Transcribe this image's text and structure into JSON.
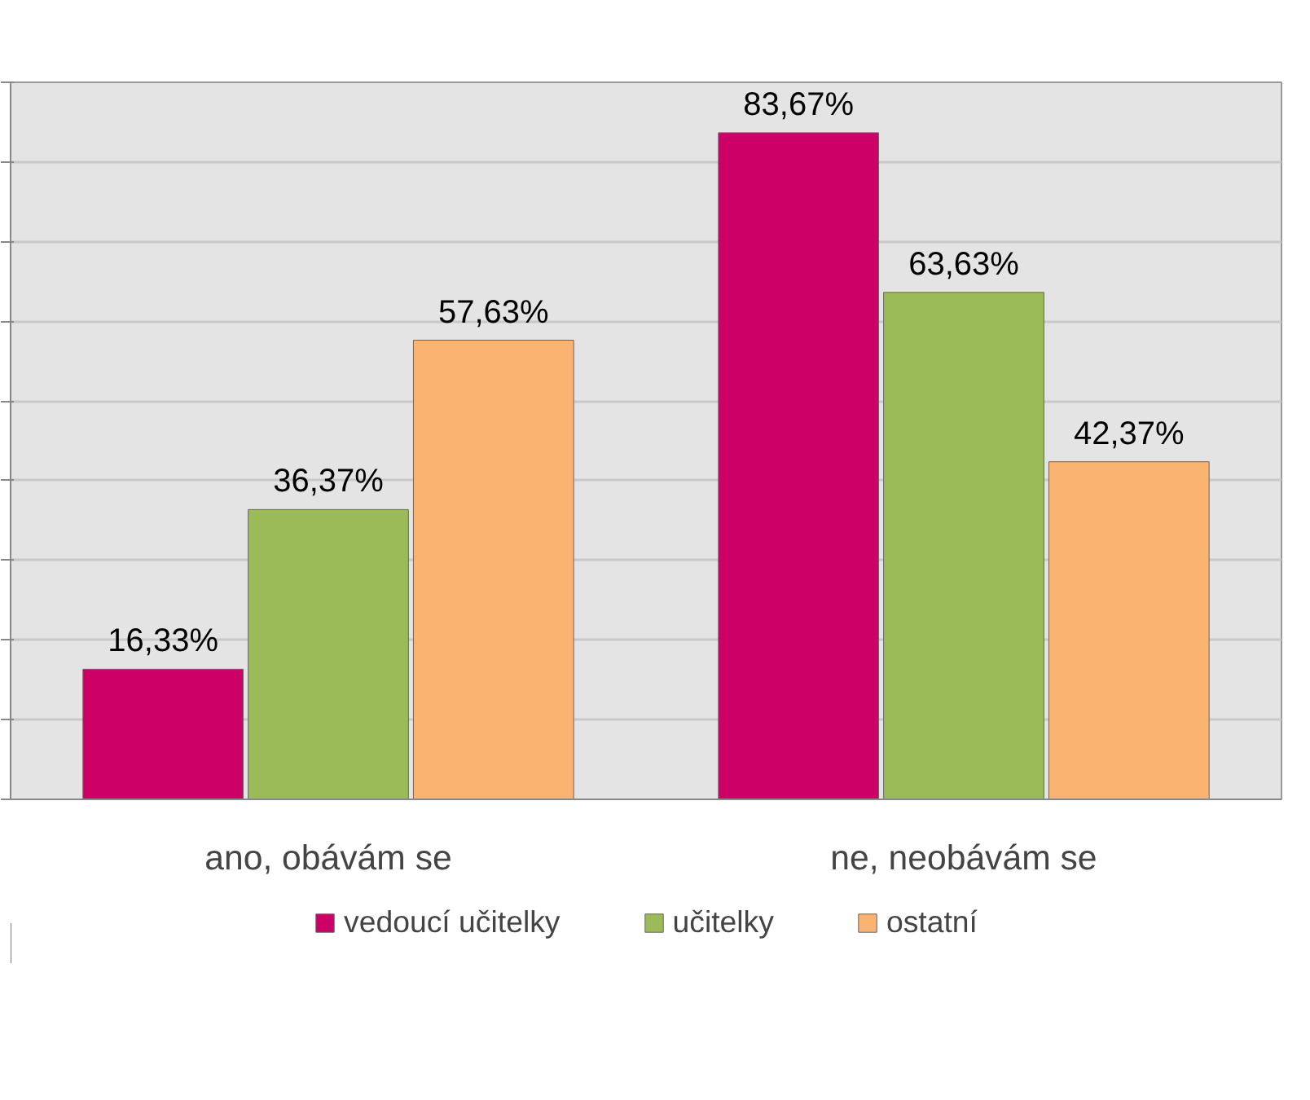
{
  "chart_data": {
    "type": "bar",
    "categories": [
      "ano, obávám se",
      "ne, neobávám se"
    ],
    "series": [
      {
        "name": "vedoucí učitelky",
        "color": "#cc0066",
        "values": [
          16.33,
          83.67
        ],
        "value_labels": [
          "16,33%",
          "83,67%"
        ]
      },
      {
        "name": "učitelky",
        "color": "#9bbb59",
        "values": [
          36.37,
          63.63
        ],
        "value_labels": [
          "36,37%",
          "63,63%"
        ]
      },
      {
        "name": "ostatní",
        "color": "#fab371",
        "values": [
          57.63,
          42.37
        ],
        "value_labels": [
          "57,63%",
          "42,37%"
        ]
      }
    ],
    "ylim": [
      0,
      90
    ],
    "yticks": [
      {
        "value": 0,
        "label": null
      },
      {
        "value": 10,
        "label": null
      },
      {
        "value": 20,
        "label": null
      },
      {
        "value": 30,
        "label": null
      },
      {
        "value": 40,
        "label": null
      },
      {
        "value": 50,
        "label": null
      },
      {
        "value": 60,
        "label": null
      },
      {
        "value": 70,
        "label": null
      },
      {
        "value": 80,
        "label": null
      },
      {
        "value": 90,
        "label": null
      }
    ],
    "tick_labels": "x",
    "grid": "y",
    "legend": "bottom"
  }
}
